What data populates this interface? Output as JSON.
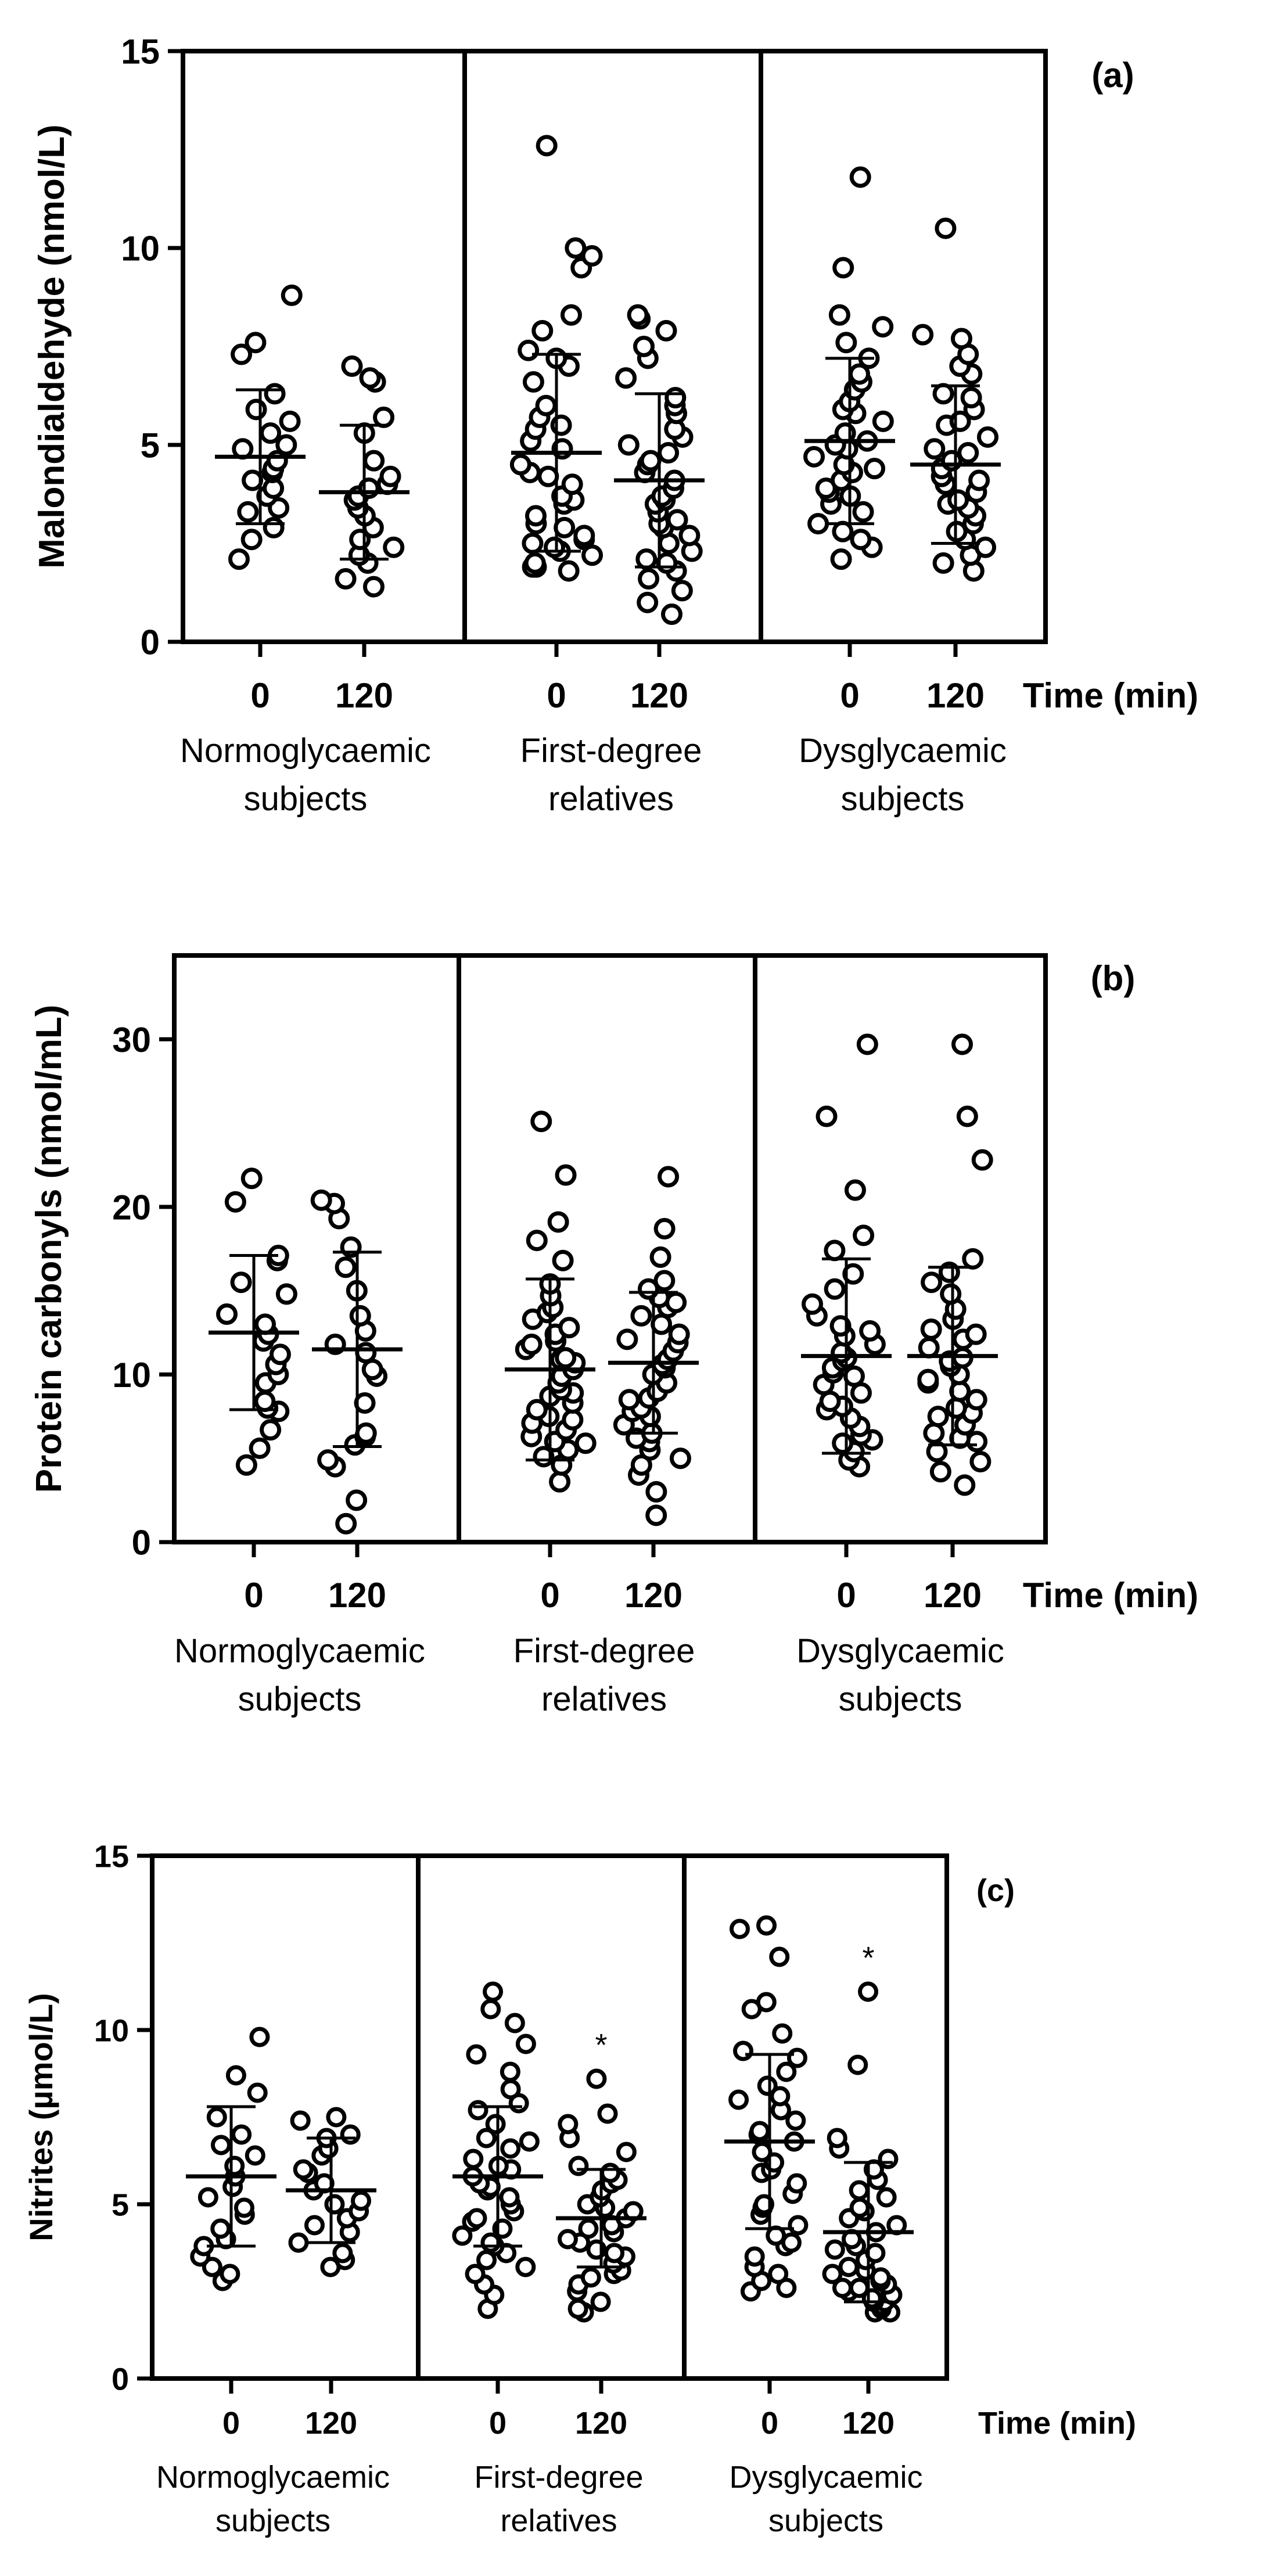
{
  "chart_data": [
    {
      "type": "scatter",
      "panel_label": "(a)",
      "ylabel": "Malondialdehyde (nmol/L)",
      "xlabel": "Time (min)",
      "ylim": [
        0,
        15
      ],
      "yticks": [
        0,
        5,
        10,
        15
      ],
      "time_labels": [
        "0",
        "120"
      ],
      "groups": [
        {
          "name": [
            "Normoglycaemic",
            "subjects"
          ],
          "series": [
            {
              "time": "0",
              "mean": 4.7,
              "sd": 1.7,
              "values": [
                8.8,
                7.6,
                7.3,
                6.3,
                5.9,
                5.6,
                5.3,
                5.0,
                4.9,
                4.6,
                4.4,
                4.3,
                4.1,
                3.9,
                3.7,
                3.4,
                3.3,
                2.9,
                2.6,
                2.1
              ]
            },
            {
              "time": "120",
              "mean": 3.8,
              "sd": 1.7,
              "values": [
                7.0,
                6.7,
                6.6,
                5.7,
                5.3,
                4.6,
                4.2,
                4.0,
                3.9,
                3.7,
                3.6,
                3.4,
                3.2,
                2.9,
                2.6,
                2.4,
                2.2,
                2.0,
                1.6,
                1.4
              ]
            }
          ]
        },
        {
          "name": [
            "First-degree",
            "relatives"
          ],
          "series": [
            {
              "time": "0",
              "mean": 4.8,
              "sd": 2.5,
              "values": [
                12.6,
                10.0,
                9.8,
                9.5,
                8.3,
                7.9,
                7.4,
                7.2,
                7.0,
                6.6,
                6.0,
                5.7,
                5.4,
                5.1,
                4.9,
                4.5,
                4.3,
                4.0,
                3.7,
                3.5,
                3.2,
                3.0,
                2.9,
                2.7,
                2.5,
                2.4,
                2.3,
                2.2,
                2.0,
                1.9,
                1.8,
                1.9,
                2.6,
                3.6,
                4.2,
                5.5
              ]
            },
            {
              "time": "120",
              "mean": 4.1,
              "sd": 2.2,
              "values": [
                8.3,
                8.2,
                7.9,
                7.5,
                6.7,
                6.2,
                5.8,
                5.4,
                5.0,
                4.8,
                4.5,
                4.3,
                4.1,
                3.9,
                3.7,
                3.5,
                3.3,
                3.1,
                2.9,
                2.7,
                2.5,
                2.3,
                2.1,
                2.0,
                1.8,
                1.6,
                1.3,
                1.0,
                0.7,
                3.0,
                3.6,
                4.6,
                5.2,
                6.0,
                7.2
              ]
            }
          ]
        },
        {
          "name": [
            "Dysglycaemic",
            "subjects"
          ],
          "series": [
            {
              "time": "0",
              "mean": 5.1,
              "sd": 2.1,
              "values": [
                11.8,
                9.5,
                8.3,
                8.0,
                7.6,
                7.2,
                6.8,
                6.4,
                6.1,
                5.9,
                5.6,
                5.3,
                5.1,
                4.9,
                4.7,
                4.5,
                4.3,
                4.1,
                3.9,
                3.7,
                3.5,
                3.3,
                3.0,
                2.8,
                2.6,
                2.4,
                2.1,
                3.8,
                4.4,
                5.0,
                5.8,
                6.6
              ]
            },
            {
              "time": "120",
              "mean": 4.5,
              "sd": 2.0,
              "values": [
                10.5,
                7.8,
                7.7,
                7.3,
                6.8,
                6.3,
                5.9,
                5.6,
                5.2,
                4.9,
                4.6,
                4.4,
                4.2,
                4.0,
                3.8,
                3.6,
                3.4,
                3.2,
                3.0,
                2.8,
                2.6,
                2.4,
                2.2,
                2.0,
                1.8,
                3.5,
                4.1,
                4.8,
                5.5,
                6.2,
                7.0
              ]
            }
          ]
        }
      ]
    },
    {
      "type": "scatter",
      "panel_label": "(b)",
      "ylabel": "Protein carbonyls (nmol/mL)",
      "xlabel": "Time (min)",
      "ylim": [
        0,
        35
      ],
      "yticks": [
        0,
        10,
        20,
        30
      ],
      "time_labels": [
        "0",
        "120"
      ],
      "groups": [
        {
          "name": [
            "Normoglycaemic",
            "subjects"
          ],
          "series": [
            {
              "time": "0",
              "mean": 12.5,
              "sd": 4.6,
              "values": [
                21.7,
                20.3,
                17.1,
                16.8,
                15.5,
                14.8,
                13.6,
                13.0,
                12.4,
                12.0,
                11.2,
                10.6,
                10.0,
                9.5,
                8.4,
                8.0,
                7.8,
                6.7,
                5.6,
                4.6
              ]
            },
            {
              "time": "120",
              "mean": 11.5,
              "sd": 5.8,
              "values": [
                20.4,
                20.2,
                19.3,
                17.6,
                16.4,
                15.0,
                13.5,
                12.6,
                11.8,
                11.3,
                10.3,
                9.9,
                8.3,
                6.5,
                6.3,
                5.8,
                4.9,
                4.5,
                2.5,
                1.1
              ]
            }
          ]
        },
        {
          "name": [
            "First-degree",
            "relatives"
          ],
          "series": [
            {
              "time": "0",
              "mean": 10.3,
              "sd": 5.4,
              "values": [
                25.1,
                21.9,
                19.1,
                18.0,
                16.8,
                15.4,
                14.7,
                14.0,
                13.3,
                12.8,
                12.4,
                12.0,
                11.5,
                11.0,
                10.7,
                10.3,
                9.9,
                9.5,
                9.1,
                8.7,
                8.3,
                7.9,
                7.5,
                7.1,
                6.7,
                6.3,
                5.9,
                5.5,
                5.1,
                4.6,
                3.6,
                13.7,
                11.8,
                10.9,
                8.9,
                7.3,
                6.0
              ]
            },
            {
              "time": "120",
              "mean": 10.7,
              "sd": 4.2,
              "values": [
                21.8,
                18.7,
                17.0,
                15.6,
                15.1,
                14.6,
                14.0,
                13.5,
                13.0,
                12.4,
                11.9,
                11.4,
                10.9,
                10.4,
                10.0,
                9.5,
                9.0,
                8.5,
                8.0,
                7.5,
                7.0,
                6.5,
                6.0,
                5.5,
                5.0,
                4.6,
                4.0,
                3.0,
                1.6,
                14.3,
                12.1,
                10.6,
                8.6,
                7.8,
                6.2
              ]
            }
          ]
        },
        {
          "name": [
            "Dysglycaemic",
            "subjects"
          ],
          "series": [
            {
              "time": "0",
              "mean": 11.1,
              "sd": 5.8,
              "values": [
                29.7,
                25.4,
                21.0,
                18.3,
                17.4,
                16.0,
                15.1,
                14.2,
                13.5,
                12.9,
                12.3,
                11.8,
                11.3,
                10.8,
                10.4,
                9.9,
                9.4,
                8.9,
                8.4,
                7.9,
                7.4,
                6.9,
                6.4,
                5.9,
                5.4,
                4.9,
                4.5,
                12.6,
                11.0,
                10.1,
                8.1,
                6.1
              ]
            },
            {
              "time": "120",
              "mean": 11.1,
              "sd": 5.3,
              "values": [
                29.7,
                25.4,
                22.8,
                16.9,
                16.1,
                15.5,
                14.8,
                13.9,
                13.3,
                12.7,
                12.1,
                11.6,
                11.0,
                10.5,
                10.0,
                9.5,
                9.0,
                8.5,
                8.0,
                7.5,
                7.0,
                6.5,
                6.0,
                5.4,
                4.8,
                4.2,
                3.4,
                12.4,
                10.8,
                9.7,
                7.7,
                6.2
              ]
            }
          ]
        }
      ]
    },
    {
      "type": "scatter",
      "panel_label": "(c)",
      "ylabel": "Nitrites (µmol/L)",
      "xlabel": "Time (min)",
      "ylim": [
        0,
        15
      ],
      "yticks": [
        0,
        5,
        10,
        15
      ],
      "time_labels": [
        "0",
        "120"
      ],
      "groups": [
        {
          "name": [
            "Normoglycaemic",
            "subjects"
          ],
          "series": [
            {
              "time": "0",
              "mean": 5.8,
              "sd": 2.0,
              "values": [
                9.8,
                8.7,
                8.2,
                7.5,
                7.0,
                6.7,
                6.4,
                6.1,
                5.8,
                5.5,
                5.2,
                4.9,
                4.7,
                4.3,
                4.0,
                3.8,
                3.5,
                3.2,
                3.0,
                2.8
              ]
            },
            {
              "time": "120",
              "mean": 5.4,
              "sd": 1.5,
              "values": [
                7.5,
                7.4,
                7.0,
                6.9,
                6.6,
                6.4,
                6.0,
                5.9,
                5.6,
                5.4,
                5.1,
                5.0,
                4.8,
                4.6,
                4.4,
                4.2,
                3.9,
                3.6,
                3.4,
                3.2
              ]
            }
          ]
        },
        {
          "name": [
            "First-degree",
            "relatives"
          ],
          "series": [
            {
              "time": "0",
              "mean": 5.8,
              "sd": 2.0,
              "values": [
                11.1,
                10.6,
                10.2,
                9.6,
                9.3,
                8.8,
                8.3,
                7.9,
                7.7,
                7.3,
                6.9,
                6.6,
                6.3,
                6.0,
                5.8,
                5.6,
                5.4,
                5.2,
                5.0,
                4.8,
                4.6,
                4.3,
                4.1,
                3.9,
                3.6,
                3.4,
                3.2,
                3.0,
                2.7,
                2.4,
                2.0,
                6.8,
                6.1,
                5.5,
                4.5,
                3.8
              ]
            },
            {
              "time": "120",
              "mean": 4.6,
              "sd": 1.4,
              "annotation": "*",
              "values": [
                8.6,
                7.6,
                7.3,
                6.9,
                6.5,
                6.1,
                5.9,
                5.6,
                5.4,
                5.2,
                5.0,
                4.8,
                4.6,
                4.4,
                4.2,
                4.0,
                3.9,
                3.7,
                3.5,
                3.3,
                3.1,
                2.9,
                2.7,
                2.5,
                2.2,
                2.0,
                1.9,
                5.7,
                4.9,
                4.3,
                3.6,
                3.0
              ]
            }
          ]
        },
        {
          "name": [
            "Dysglycaemic",
            "subjects"
          ],
          "series": [
            {
              "time": "0",
              "mean": 6.8,
              "sd": 2.5,
              "values": [
                13.0,
                12.9,
                12.1,
                10.8,
                10.6,
                9.9,
                9.4,
                9.2,
                8.8,
                8.4,
                8.0,
                7.7,
                7.4,
                7.1,
                6.8,
                6.5,
                6.2,
                5.9,
                5.6,
                5.3,
                5.0,
                4.7,
                4.4,
                4.1,
                3.8,
                3.5,
                3.2,
                3.0,
                2.8,
                2.6,
                2.5,
                8.1,
                7.0,
                6.0,
                4.9,
                3.9
              ]
            },
            {
              "time": "120",
              "mean": 4.2,
              "sd": 2.0,
              "annotation": "*",
              "values": [
                11.1,
                9.0,
                6.9,
                6.6,
                6.3,
                6.0,
                5.7,
                5.4,
                5.2,
                4.9,
                4.6,
                4.4,
                4.2,
                4.0,
                3.8,
                3.6,
                3.4,
                3.2,
                3.0,
                2.9,
                2.8,
                2.7,
                2.6,
                2.5,
                2.4,
                2.3,
                2.2,
                2.1,
                2.0,
                1.9,
                1.9,
                4.8,
                3.7,
                3.1,
                2.6,
                2.2
              ]
            }
          ]
        }
      ]
    }
  ]
}
